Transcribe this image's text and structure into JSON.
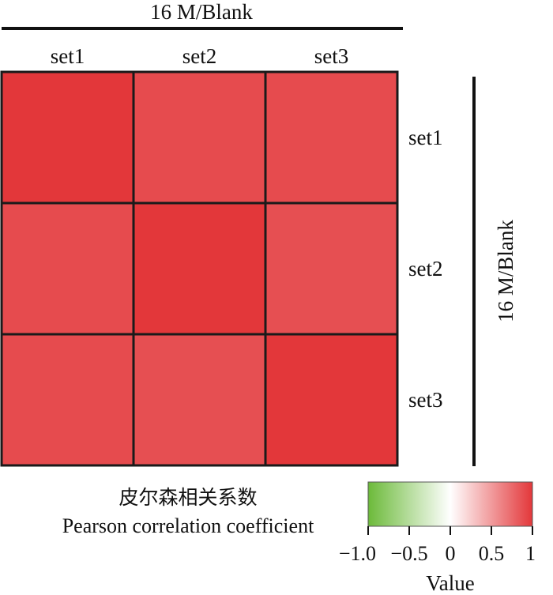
{
  "chart_data": {
    "type": "heatmap",
    "title": "16 M/Blank",
    "row_group_label": "16 M/Blank",
    "columns": [
      "set1",
      "set2",
      "set3"
    ],
    "rows": [
      "set1",
      "set2",
      "set3"
    ],
    "values": [
      [
        1.0,
        0.9,
        0.9
      ],
      [
        0.9,
        1.0,
        0.88
      ],
      [
        0.9,
        0.88,
        1.0
      ]
    ],
    "legend": {
      "title_cn": "皮尔森相关系数",
      "title_en": "Pearson correlation coefficient",
      "axis_label": "Value",
      "range": [
        -1.0,
        1.0
      ],
      "ticks": [
        "−1.0",
        "−0.5",
        "0",
        "0.5",
        "1"
      ],
      "tick_values": [
        -1.0,
        -0.5,
        0,
        0.5,
        1.0
      ],
      "colors": {
        "low": "#6cba3a",
        "mid": "#ffffff",
        "high": "#e3373a"
      }
    }
  }
}
